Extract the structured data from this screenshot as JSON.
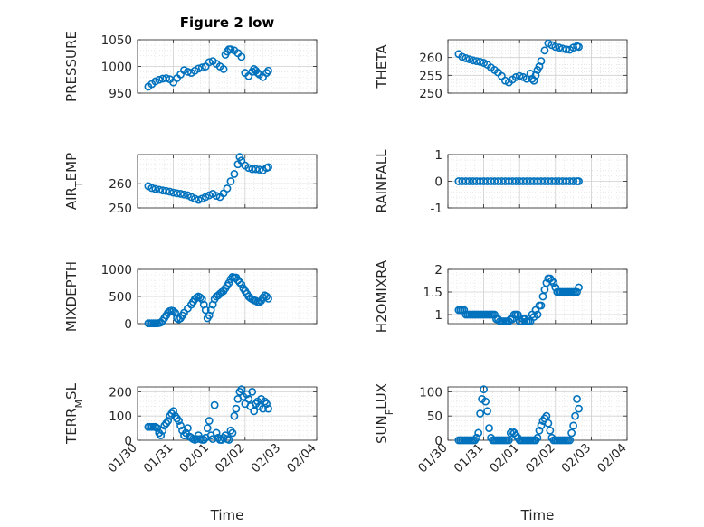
{
  "figure": {
    "title": "Figure 2 low",
    "marker_color": "#0072BD",
    "axes_color": "#262626",
    "grid": "major and minor",
    "marker": "circle"
  },
  "chart_data": [
    {
      "type": "scatter",
      "ylabel": "PRESSURE",
      "xlim": [
        "01/30",
        "02/04"
      ],
      "ylim": [
        950,
        1050
      ],
      "yticks": [
        950,
        1000,
        1050
      ],
      "xticks": [
        "01/30",
        "01/31",
        "02/01",
        "02/02",
        "02/03",
        "02/04"
      ],
      "x": [
        0.3,
        0.4,
        0.5,
        0.6,
        0.7,
        0.8,
        0.9,
        1.0,
        1.1,
        1.2,
        1.3,
        1.4,
        1.5,
        1.6,
        1.7,
        1.8,
        1.9,
        2.0,
        2.1,
        2.2,
        2.3,
        2.4,
        2.45,
        2.5,
        2.55,
        2.6,
        2.7,
        2.8,
        2.9,
        3.0,
        3.1,
        3.2,
        3.25,
        3.3,
        3.35,
        3.4,
        3.5,
        3.6,
        3.65
      ],
      "y": [
        962,
        967,
        972,
        975,
        977,
        978,
        976,
        970,
        978,
        985,
        993,
        990,
        988,
        992,
        996,
        998,
        1000,
        1008,
        1010,
        1005,
        1000,
        995,
        1022,
        1028,
        1032,
        1032,
        1030,
        1025,
        1018,
        988,
        982,
        990,
        995,
        992,
        988,
        985,
        980,
        988,
        992
      ]
    },
    {
      "type": "scatter",
      "ylabel": "THETA",
      "xlim": [
        "01/30",
        "02/04"
      ],
      "ylim": [
        250,
        265
      ],
      "yticks": [
        250,
        255,
        260
      ],
      "xticks": [
        "01/30",
        "01/31",
        "02/01",
        "02/02",
        "02/03",
        "02/04"
      ],
      "x": [
        0.3,
        0.4,
        0.5,
        0.6,
        0.7,
        0.8,
        0.9,
        1.0,
        1.1,
        1.2,
        1.3,
        1.4,
        1.5,
        1.6,
        1.7,
        1.8,
        1.9,
        2.0,
        2.1,
        2.2,
        2.3,
        2.35,
        2.4,
        2.45,
        2.5,
        2.55,
        2.6,
        2.7,
        2.8,
        2.9,
        3.0,
        3.1,
        3.2,
        3.3,
        3.4,
        3.5,
        3.6,
        3.65
      ],
      "y": [
        261,
        260.2,
        259.8,
        259.5,
        259.2,
        259,
        258.8,
        258.5,
        258,
        257.2,
        256.5,
        255.8,
        254.8,
        253.5,
        253,
        253.8,
        254.5,
        254.8,
        254.5,
        254,
        255.5,
        254,
        253.5,
        255,
        256.5,
        257.5,
        259,
        262,
        264,
        263.5,
        263,
        262.8,
        262.5,
        262.3,
        262.2,
        262.8,
        263.2,
        263
      ]
    },
    {
      "type": "scatter",
      "ylabel": "AIR_TEMP",
      "xlim": [
        "01/30",
        "02/04"
      ],
      "ylim": [
        250,
        272
      ],
      "yticks": [
        250,
        260
      ],
      "xticks": [
        "01/30",
        "01/31",
        "02/01",
        "02/02",
        "02/03",
        "02/04"
      ],
      "x": [
        0.3,
        0.4,
        0.5,
        0.6,
        0.7,
        0.8,
        0.9,
        1.0,
        1.1,
        1.2,
        1.3,
        1.4,
        1.5,
        1.6,
        1.7,
        1.8,
        1.9,
        2.0,
        2.1,
        2.2,
        2.3,
        2.4,
        2.5,
        2.6,
        2.7,
        2.8,
        2.85,
        2.9,
        3.0,
        3.1,
        3.2,
        3.3,
        3.4,
        3.5,
        3.6,
        3.65
      ],
      "y": [
        259,
        258.2,
        257.8,
        257.5,
        257.2,
        257,
        256.7,
        256.3,
        256,
        255.8,
        255.5,
        255.2,
        254.5,
        253.8,
        253.3,
        253.8,
        254.5,
        255.2,
        255.8,
        255,
        254.5,
        256,
        258,
        261,
        264,
        268,
        271,
        269.5,
        267.5,
        266.5,
        266,
        266,
        265.8,
        265.5,
        266.5,
        266.8
      ]
    },
    {
      "type": "scatter",
      "ylabel": "RAINFALL",
      "xlim": [
        "01/30",
        "02/04"
      ],
      "ylim": [
        -1,
        1
      ],
      "yticks": [
        -1,
        0,
        1
      ],
      "xticks": [
        "01/30",
        "01/31",
        "02/01",
        "02/02",
        "02/03",
        "02/04"
      ],
      "x": [
        0.3,
        0.4,
        0.5,
        0.6,
        0.7,
        0.8,
        0.9,
        1.0,
        1.1,
        1.2,
        1.3,
        1.4,
        1.5,
        1.6,
        1.7,
        1.8,
        1.9,
        2.0,
        2.1,
        2.2,
        2.3,
        2.4,
        2.5,
        2.6,
        2.7,
        2.8,
        2.9,
        3.0,
        3.1,
        3.2,
        3.3,
        3.4,
        3.5,
        3.6,
        3.65
      ],
      "y": [
        0,
        0,
        0,
        0,
        0,
        0,
        0,
        0,
        0,
        0,
        0,
        0,
        0,
        0,
        0,
        0,
        0,
        0,
        0,
        0,
        0,
        0,
        0,
        0,
        0,
        0,
        0,
        0,
        0,
        0,
        0,
        0,
        0,
        0,
        0
      ]
    },
    {
      "type": "scatter",
      "ylabel": "MIXDEPTH",
      "xlim": [
        "01/30",
        "02/04"
      ],
      "ylim": [
        0,
        1000
      ],
      "yticks": [
        0,
        500,
        1000
      ],
      "xticks": [
        "01/30",
        "01/31",
        "02/01",
        "02/02",
        "02/03",
        "02/04"
      ],
      "x": [
        0.3,
        0.35,
        0.4,
        0.45,
        0.5,
        0.55,
        0.6,
        0.65,
        0.7,
        0.75,
        0.8,
        0.85,
        0.9,
        0.95,
        1.0,
        1.05,
        1.1,
        1.15,
        1.2,
        1.25,
        1.3,
        1.4,
        1.5,
        1.55,
        1.6,
        1.65,
        1.7,
        1.75,
        1.8,
        1.85,
        1.9,
        1.95,
        2.0,
        2.05,
        2.1,
        2.15,
        2.2,
        2.25,
        2.3,
        2.35,
        2.4,
        2.45,
        2.5,
        2.55,
        2.6,
        2.65,
        2.7,
        2.75,
        2.8,
        2.85,
        2.9,
        2.95,
        3.0,
        3.05,
        3.1,
        3.15,
        3.2,
        3.25,
        3.3,
        3.35,
        3.4,
        3.45,
        3.5,
        3.55,
        3.6,
        3.65
      ],
      "y": [
        5,
        5,
        5,
        5,
        5,
        5,
        10,
        20,
        50,
        100,
        150,
        200,
        230,
        240,
        230,
        200,
        100,
        80,
        100,
        150,
        200,
        280,
        350,
        400,
        450,
        480,
        500,
        480,
        450,
        350,
        250,
        100,
        150,
        250,
        350,
        450,
        500,
        520,
        550,
        580,
        600,
        650,
        700,
        750,
        820,
        860,
        850,
        850,
        800,
        760,
        720,
        650,
        600,
        550,
        500,
        470,
        450,
        430,
        420,
        400,
        400,
        420,
        480,
        520,
        500,
        460
      ]
    },
    {
      "type": "scatter",
      "ylabel": "H2OMIXRA",
      "xlim": [
        "01/30",
        "02/04"
      ],
      "ylim": [
        0.8,
        2
      ],
      "yticks": [
        1,
        1.5,
        2
      ],
      "xticks": [
        "01/30",
        "01/31",
        "02/01",
        "02/02",
        "02/03",
        "02/04"
      ],
      "x": [
        0.3,
        0.35,
        0.4,
        0.45,
        0.5,
        0.55,
        0.6,
        0.65,
        0.7,
        0.75,
        0.8,
        0.85,
        0.9,
        0.95,
        1.0,
        1.05,
        1.1,
        1.15,
        1.2,
        1.25,
        1.3,
        1.35,
        1.4,
        1.45,
        1.5,
        1.55,
        1.6,
        1.65,
        1.7,
        1.75,
        1.8,
        1.85,
        1.9,
        1.95,
        2.0,
        2.05,
        2.1,
        2.15,
        2.2,
        2.25,
        2.3,
        2.35,
        2.4,
        2.45,
        2.5,
        2.55,
        2.6,
        2.65,
        2.7,
        2.75,
        2.8,
        2.85,
        2.9,
        2.95,
        3.0,
        3.05,
        3.1,
        3.15,
        3.2,
        3.25,
        3.3,
        3.35,
        3.4,
        3.45,
        3.5,
        3.55,
        3.6,
        3.65
      ],
      "y": [
        1.1,
        1.1,
        1.1,
        1.1,
        1.0,
        1.0,
        1.0,
        1.0,
        1.0,
        1.0,
        1.0,
        1.0,
        1.0,
        1.0,
        1.0,
        1.0,
        1.0,
        1.0,
        1.0,
        1.0,
        1.0,
        0.9,
        0.9,
        0.85,
        0.85,
        0.85,
        0.85,
        0.85,
        0.85,
        0.9,
        0.9,
        1.0,
        1.0,
        1.0,
        0.85,
        0.85,
        0.9,
        0.9,
        0.85,
        0.85,
        0.85,
        1.0,
        0.95,
        1.1,
        1.0,
        1.2,
        1.2,
        1.4,
        1.55,
        1.7,
        1.8,
        1.8,
        1.75,
        1.7,
        1.6,
        1.5,
        1.5,
        1.5,
        1.5,
        1.5,
        1.5,
        1.5,
        1.5,
        1.5,
        1.5,
        1.5,
        1.5,
        1.6
      ]
    },
    {
      "type": "scatter",
      "ylabel": "TERR_MSL",
      "xlim": [
        "01/30",
        "02/04"
      ],
      "ylim": [
        0,
        220
      ],
      "yticks": [
        0,
        100,
        200
      ],
      "xticks": [
        "01/30",
        "01/31",
        "02/01",
        "02/02",
        "02/03",
        "02/04"
      ],
      "x": [
        0.3,
        0.35,
        0.4,
        0.45,
        0.5,
        0.55,
        0.6,
        0.65,
        0.7,
        0.75,
        0.8,
        0.85,
        0.9,
        0.95,
        1.0,
        1.05,
        1.1,
        1.15,
        1.2,
        1.25,
        1.3,
        1.35,
        1.4,
        1.45,
        1.5,
        1.55,
        1.6,
        1.65,
        1.7,
        1.75,
        1.8,
        1.85,
        1.9,
        1.95,
        2.0,
        2.05,
        2.1,
        2.15,
        2.2,
        2.25,
        2.3,
        2.35,
        2.4,
        2.45,
        2.5,
        2.55,
        2.6,
        2.65,
        2.7,
        2.75,
        2.8,
        2.85,
        2.9,
        2.95,
        3.0,
        3.05,
        3.1,
        3.15,
        3.2,
        3.25,
        3.3,
        3.35,
        3.4,
        3.45,
        3.5,
        3.55,
        3.6,
        3.65
      ],
      "y": [
        55,
        55,
        55,
        55,
        55,
        50,
        30,
        20,
        40,
        60,
        70,
        80,
        100,
        110,
        120,
        100,
        90,
        80,
        60,
        40,
        20,
        30,
        50,
        15,
        10,
        5,
        2,
        5,
        20,
        5,
        2,
        2,
        10,
        50,
        80,
        20,
        5,
        145,
        30,
        10,
        2,
        2,
        10,
        20,
        5,
        2,
        40,
        30,
        100,
        130,
        170,
        200,
        210,
        180,
        150,
        190,
        170,
        140,
        200,
        120,
        150,
        160,
        140,
        170,
        130,
        160,
        150,
        130
      ]
    },
    {
      "type": "scatter",
      "ylabel": "SUN_FLUX",
      "xlim": [
        "01/30",
        "02/04"
      ],
      "ylim": [
        0,
        110
      ],
      "yticks": [
        0,
        50,
        100
      ],
      "xticks": [
        "01/30",
        "01/31",
        "02/01",
        "02/02",
        "02/03",
        "02/04"
      ],
      "x": [
        0.3,
        0.35,
        0.4,
        0.45,
        0.5,
        0.55,
        0.6,
        0.65,
        0.7,
        0.75,
        0.8,
        0.85,
        0.9,
        0.95,
        1.0,
        1.05,
        1.1,
        1.15,
        1.2,
        1.25,
        1.3,
        1.35,
        1.4,
        1.45,
        1.5,
        1.55,
        1.6,
        1.65,
        1.7,
        1.75,
        1.8,
        1.85,
        1.9,
        1.95,
        2.0,
        2.05,
        2.1,
        2.15,
        2.2,
        2.25,
        2.3,
        2.35,
        2.4,
        2.45,
        2.5,
        2.55,
        2.6,
        2.65,
        2.7,
        2.75,
        2.8,
        2.85,
        2.9,
        2.95,
        3.0,
        3.05,
        3.1,
        3.15,
        3.2,
        3.25,
        3.3,
        3.35,
        3.4,
        3.45,
        3.5,
        3.55,
        3.6,
        3.65
      ],
      "y": [
        0,
        0,
        0,
        0,
        0,
        0,
        0,
        0,
        0,
        0,
        5,
        15,
        55,
        85,
        105,
        80,
        60,
        25,
        5,
        0,
        0,
        0,
        0,
        0,
        0,
        0,
        0,
        0,
        0,
        15,
        18,
        15,
        10,
        5,
        0,
        0,
        0,
        0,
        0,
        0,
        0,
        0,
        0,
        0,
        5,
        20,
        30,
        40,
        45,
        50,
        35,
        20,
        5,
        0,
        0,
        0,
        0,
        0,
        0,
        0,
        0,
        0,
        0,
        15,
        30,
        50,
        85,
        65
      ]
    }
  ],
  "x_axis": {
    "label": "Time",
    "tick_labels": [
      "01/30",
      "01/31",
      "02/01",
      "02/02",
      "02/03",
      "02/04"
    ]
  },
  "y_labels": [
    {
      "main": "PRESSURE",
      "sub": "",
      "tail": ""
    },
    {
      "main": "THETA",
      "sub": "",
      "tail": ""
    },
    {
      "main": "AIR",
      "sub": "T",
      "tail": "EMP"
    },
    {
      "main": "RAINFALL",
      "sub": "",
      "tail": ""
    },
    {
      "main": "MIXDEPTH",
      "sub": "",
      "tail": ""
    },
    {
      "main": "H2OMIXRA",
      "sub": "",
      "tail": ""
    },
    {
      "main": "TERR",
      "sub": "M",
      "tail": "SL"
    },
    {
      "main": "SUN",
      "sub": "F",
      "tail": "LUX"
    }
  ]
}
